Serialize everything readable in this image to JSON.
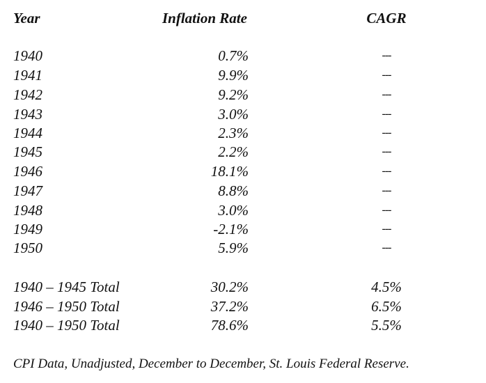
{
  "table": {
    "headers": {
      "year": "Year",
      "rate": "Inflation Rate",
      "cagr": "CAGR"
    },
    "rows": [
      {
        "year": "1940",
        "rate": "0.7%",
        "cagr": "---"
      },
      {
        "year": "1941",
        "rate": "9.9%",
        "cagr": "---"
      },
      {
        "year": "1942",
        "rate": "9.2%",
        "cagr": "---"
      },
      {
        "year": "1943",
        "rate": "3.0%",
        "cagr": "---"
      },
      {
        "year": "1944",
        "rate": "2.3%",
        "cagr": "---"
      },
      {
        "year": "1945",
        "rate": "2.2%",
        "cagr": "---"
      },
      {
        "year": "1946",
        "rate": "18.1%",
        "cagr": "---"
      },
      {
        "year": "1947",
        "rate": "8.8%",
        "cagr": "---"
      },
      {
        "year": "1948",
        "rate": "3.0%",
        "cagr": "---"
      },
      {
        "year": "1949",
        "rate": "-2.1%",
        "cagr": "---"
      },
      {
        "year": "1950",
        "rate": "5.9%",
        "cagr": "---"
      }
    ],
    "totals": [
      {
        "year": "1940 – 1945 Total",
        "rate": "30.2%",
        "cagr": "4.5%"
      },
      {
        "year": "1946 – 1950 Total",
        "rate": "37.2%",
        "cagr": "6.5%"
      },
      {
        "year": "1940 – 1950 Total",
        "rate": "78.6%",
        "cagr": "5.5%"
      }
    ]
  },
  "footnote": "CPI Data, Unadjusted, December to December, St. Louis Federal Reserve."
}
